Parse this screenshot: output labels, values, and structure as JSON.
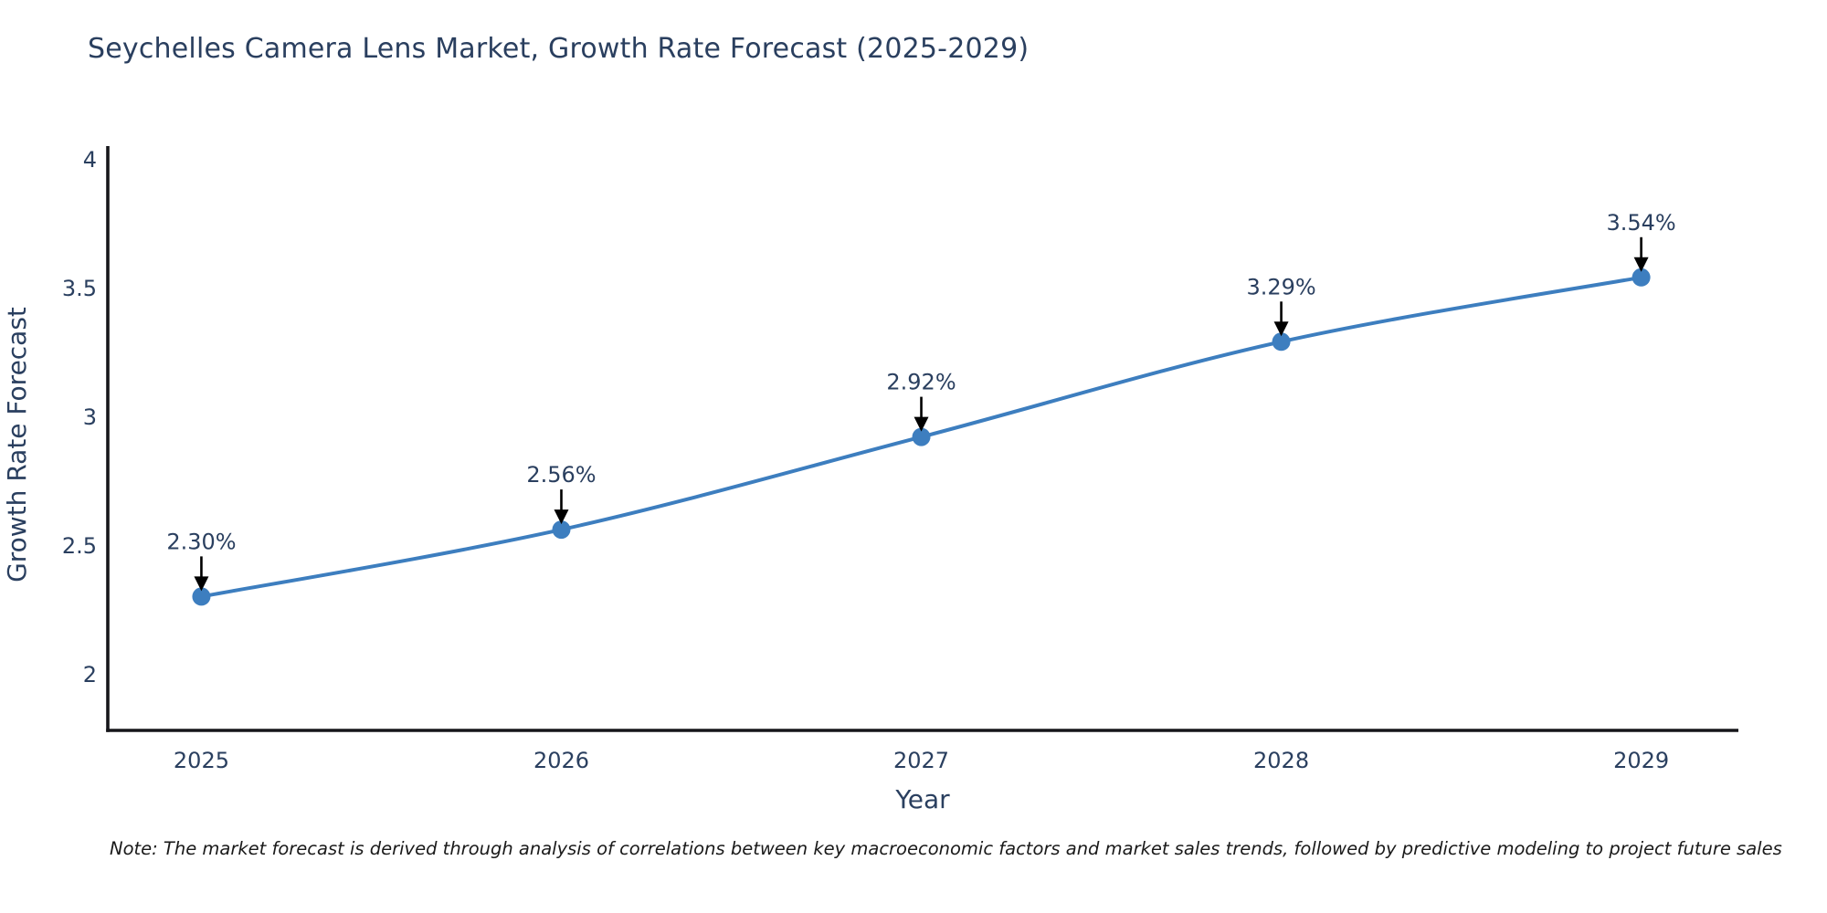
{
  "page": {
    "note": "Note: The market forecast is derived through analysis of correlations between key macroeconomic factors and market sales trends, followed by predictive modeling to project future sales"
  },
  "chart_data": {
    "type": "line",
    "title": "Seychelles Camera Lens Market, Growth Rate Forecast (2025-2029)",
    "xlabel": "Year",
    "ylabel": "Growth Rate Forecast",
    "x": [
      2025,
      2026,
      2027,
      2028,
      2029
    ],
    "x_tick_labels": [
      "2025",
      "2026",
      "2027",
      "2028",
      "2029"
    ],
    "values": [
      2.3,
      2.56,
      2.92,
      3.29,
      3.54
    ],
    "point_labels": [
      "2.30%",
      "2.56%",
      "2.92%",
      "3.29%",
      "3.54%"
    ],
    "yticks": [
      2,
      2.5,
      3,
      3.5,
      4
    ],
    "ytick_labels": [
      "2",
      "2.5",
      "3",
      "3.5",
      "4"
    ],
    "xlim": [
      2024.74,
      2029.27
    ],
    "ylim": [
      1.78,
      4.05
    ],
    "grid": false,
    "legend_position": "none",
    "line_shape": "spline",
    "line_color": "#3d7ebf",
    "marker_color": "#3d7ebf",
    "annotation_arrow_color": "#000000",
    "text_color": "#2a3f5f",
    "axis_line_color": "#16161a"
  }
}
